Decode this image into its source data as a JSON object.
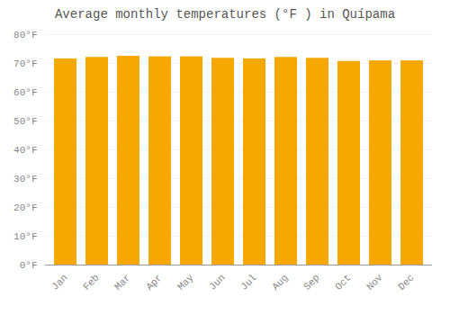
{
  "chart_data": {
    "type": "bar",
    "title": "Average monthly temperatures (°F ) in Quípama",
    "categories": [
      "Jan",
      "Feb",
      "Mar",
      "Apr",
      "May",
      "Jun",
      "Jul",
      "Aug",
      "Sep",
      "Oct",
      "Nov",
      "Dec"
    ],
    "values": [
      71.6,
      72.1,
      72.5,
      72.3,
      72.3,
      71.8,
      71.6,
      72.1,
      71.8,
      70.7,
      70.9,
      70.9
    ],
    "color": "#F5A800",
    "ylim": [
      0,
      80
    ],
    "yticks": [
      {
        "value": 0,
        "label": "0°F"
      },
      {
        "value": 10,
        "label": "10°F"
      },
      {
        "value": 20,
        "label": "20°F"
      },
      {
        "value": 30,
        "label": "30°F"
      },
      {
        "value": 40,
        "label": "40°F"
      },
      {
        "value": 50,
        "label": "50°F"
      },
      {
        "value": 60,
        "label": "60°F"
      },
      {
        "value": 70,
        "label": "70°F"
      },
      {
        "value": 80,
        "label": "80°F"
      }
    ],
    "grid": true
  }
}
